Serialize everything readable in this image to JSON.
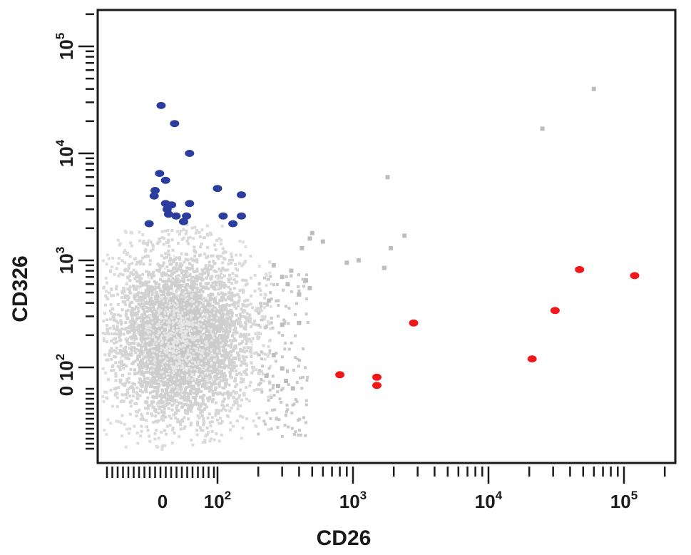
{
  "chart_data": {
    "type": "scatter",
    "title": "",
    "xlabel": "CD26",
    "ylabel": "CD326",
    "x_scale": "biexponential",
    "y_scale": "biexponential",
    "xlim": [
      -60,
      200000
    ],
    "ylim": [
      -60,
      200000
    ],
    "grid": false,
    "x_ticks": [
      {
        "value": 0,
        "base": "0",
        "exp": ""
      },
      {
        "value": 100,
        "base": "10",
        "exp": "2"
      },
      {
        "value": 1000,
        "base": "10",
        "exp": "3"
      },
      {
        "value": 10000,
        "base": "10",
        "exp": "4"
      },
      {
        "value": 100000,
        "base": "10",
        "exp": "5"
      }
    ],
    "y_ticks": [
      {
        "value": 0,
        "base": "0",
        "exp": ""
      },
      {
        "value": 100,
        "base": "10",
        "exp": "2"
      },
      {
        "value": 1000,
        "base": "10",
        "exp": "3"
      },
      {
        "value": 10000,
        "base": "10",
        "exp": "4"
      },
      {
        "value": 100000,
        "base": "10",
        "exp": "5"
      }
    ],
    "series": [
      {
        "color": "#2b3e9e",
        "points": [
          {
            "x": -5,
            "y": 28000
          },
          {
            "x": 40,
            "y": 19000
          },
          {
            "x": 90,
            "y": 10000
          },
          {
            "x": -10,
            "y": 6500
          },
          {
            "x": 10,
            "y": 5600
          },
          {
            "x": 100,
            "y": 4700
          },
          {
            "x": -25,
            "y": 4500
          },
          {
            "x": -28,
            "y": 4000
          },
          {
            "x": 150,
            "y": 4100
          },
          {
            "x": 10,
            "y": 3400
          },
          {
            "x": 30,
            "y": 3300
          },
          {
            "x": 90,
            "y": 3400
          },
          {
            "x": 15,
            "y": 3000
          },
          {
            "x": 20,
            "y": 2700
          },
          {
            "x": 45,
            "y": 2600
          },
          {
            "x": 80,
            "y": 2600
          },
          {
            "x": 110,
            "y": 2600
          },
          {
            "x": 150,
            "y": 2600
          },
          {
            "x": 70,
            "y": 2300
          },
          {
            "x": 130,
            "y": 2200
          },
          {
            "x": -45,
            "y": 2200
          }
        ]
      },
      {
        "color": "#f01818",
        "points": [
          {
            "x": 800,
            "y": 65
          },
          {
            "x": 1500,
            "y": 55
          },
          {
            "x": 1500,
            "y": 22
          },
          {
            "x": 2800,
            "y": 260
          },
          {
            "x": 21000,
            "y": 120
          },
          {
            "x": 31000,
            "y": 340
          },
          {
            "x": 47000,
            "y": 820
          },
          {
            "x": 120000,
            "y": 720
          }
        ]
      },
      {
        "color": "#bdbdbd",
        "points": [
          {
            "x": 60000,
            "y": 40000
          },
          {
            "x": 25000,
            "y": 17000
          },
          {
            "x": 1800,
            "y": 6000
          },
          {
            "x": 2400,
            "y": 1700
          },
          {
            "x": 1900,
            "y": 1300
          },
          {
            "x": 1700,
            "y": 850
          },
          {
            "x": 1100,
            "y": 1000
          },
          {
            "x": 900,
            "y": 950
          },
          {
            "x": 500,
            "y": 1800
          },
          {
            "x": 480,
            "y": 1600
          },
          {
            "x": 420,
            "y": 1300
          },
          {
            "x": 600,
            "y": 1500
          },
          {
            "x": 450,
            "y": 650
          },
          {
            "x": 480,
            "y": 550
          },
          {
            "x": 400,
            "y": 480
          },
          {
            "x": 300,
            "y": 700
          },
          {
            "x": 350,
            "y": 800
          },
          {
            "x": 330,
            "y": 600
          },
          {
            "x": 260,
            "y": 900
          },
          {
            "x": 240,
            "y": 420
          },
          {
            "x": 300,
            "y": 250
          },
          {
            "x": 400,
            "y": 260
          },
          {
            "x": 260,
            "y": 130
          },
          {
            "x": 300,
            "y": 90
          },
          {
            "x": 320,
            "y": 40
          },
          {
            "x": 280,
            "y": 20
          },
          {
            "x": 360,
            "y": 10
          },
          {
            "x": 230,
            "y": 60
          }
        ]
      }
    ]
  }
}
